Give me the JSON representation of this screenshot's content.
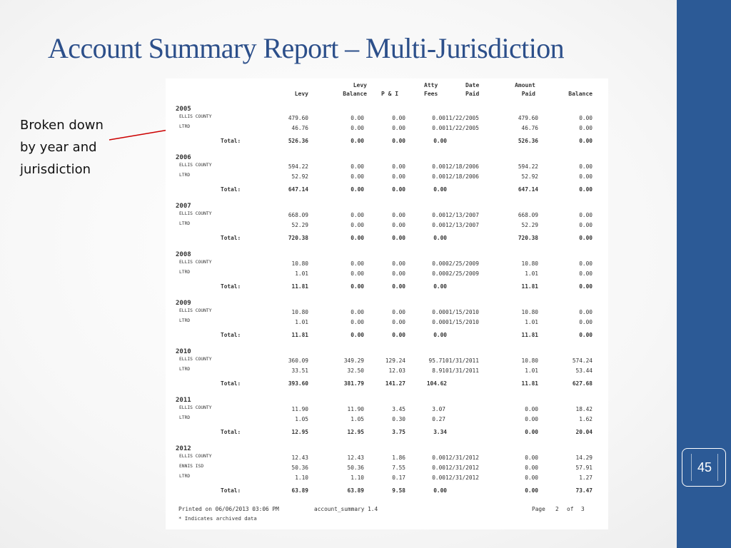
{
  "slide": {
    "title": "Account Summary Report – Multi-Jurisdiction",
    "note": "Broken down by year and jurisdiction",
    "page_number": "45"
  },
  "colors": {
    "title": "#2c4f8a",
    "side_bar": "#2c5a96",
    "arrow": "#cc0000"
  },
  "report": {
    "headers": [
      {
        "key": "levy",
        "lines": [
          "",
          "Levy"
        ]
      },
      {
        "key": "levy_balance",
        "lines": [
          "Levy",
          "Balance"
        ]
      },
      {
        "key": "pi",
        "lines": [
          "",
          "P & I"
        ]
      },
      {
        "key": "atty_fees",
        "lines": [
          "Atty",
          "Fees"
        ]
      },
      {
        "key": "date_paid",
        "lines": [
          "Date",
          "Paid"
        ]
      },
      {
        "key": "amount_paid",
        "lines": [
          "Amount",
          "Paid"
        ]
      },
      {
        "key": "balance",
        "lines": [
          "",
          "Balance"
        ]
      }
    ],
    "total_label": "Total:",
    "years": [
      {
        "year": "2005",
        "rows": [
          {
            "jur": "ELLIS COUNTY",
            "levy": "479.60",
            "levy_balance": "0.00",
            "pi": "0.00",
            "atty": "0.00",
            "date": "11/22/2005",
            "amount": "479.60",
            "balance": "0.00"
          },
          {
            "jur": "LTRD",
            "levy": "46.76",
            "levy_balance": "0.00",
            "pi": "0.00",
            "atty": "0.00",
            "date": "11/22/2005",
            "amount": "46.76",
            "balance": "0.00"
          }
        ],
        "total": {
          "levy": "526.36",
          "levy_balance": "0.00",
          "pi": "0.00",
          "atty": "0.00",
          "amount": "526.36",
          "balance": "0.00"
        }
      },
      {
        "year": "2006",
        "rows": [
          {
            "jur": "ELLIS COUNTY",
            "levy": "594.22",
            "levy_balance": "0.00",
            "pi": "0.00",
            "atty": "0.00",
            "date": "12/18/2006",
            "amount": "594.22",
            "balance": "0.00"
          },
          {
            "jur": "LTRD",
            "levy": "52.92",
            "levy_balance": "0.00",
            "pi": "0.00",
            "atty": "0.00",
            "date": "12/18/2006",
            "amount": "52.92",
            "balance": "0.00"
          }
        ],
        "total": {
          "levy": "647.14",
          "levy_balance": "0.00",
          "pi": "0.00",
          "atty": "0.00",
          "amount": "647.14",
          "balance": "0.00"
        }
      },
      {
        "year": "2007",
        "rows": [
          {
            "jur": "ELLIS COUNTY",
            "levy": "668.09",
            "levy_balance": "0.00",
            "pi": "0.00",
            "atty": "0.00",
            "date": "12/13/2007",
            "amount": "668.09",
            "balance": "0.00"
          },
          {
            "jur": "LTRD",
            "levy": "52.29",
            "levy_balance": "0.00",
            "pi": "0.00",
            "atty": "0.00",
            "date": "12/13/2007",
            "amount": "52.29",
            "balance": "0.00"
          }
        ],
        "total": {
          "levy": "720.38",
          "levy_balance": "0.00",
          "pi": "0.00",
          "atty": "0.00",
          "amount": "720.38",
          "balance": "0.00"
        }
      },
      {
        "year": "2008",
        "rows": [
          {
            "jur": "ELLIS COUNTY",
            "levy": "10.80",
            "levy_balance": "0.00",
            "pi": "0.00",
            "atty": "0.00",
            "date": "02/25/2009",
            "amount": "10.80",
            "balance": "0.00"
          },
          {
            "jur": "LTRD",
            "levy": "1.01",
            "levy_balance": "0.00",
            "pi": "0.00",
            "atty": "0.00",
            "date": "02/25/2009",
            "amount": "1.01",
            "balance": "0.00"
          }
        ],
        "total": {
          "levy": "11.81",
          "levy_balance": "0.00",
          "pi": "0.00",
          "atty": "0.00",
          "amount": "11.81",
          "balance": "0.00"
        }
      },
      {
        "year": "2009",
        "rows": [
          {
            "jur": "ELLIS COUNTY",
            "levy": "10.80",
            "levy_balance": "0.00",
            "pi": "0.00",
            "atty": "0.00",
            "date": "01/15/2010",
            "amount": "10.80",
            "balance": "0.00"
          },
          {
            "jur": "LTRD",
            "levy": "1.01",
            "levy_balance": "0.00",
            "pi": "0.00",
            "atty": "0.00",
            "date": "01/15/2010",
            "amount": "1.01",
            "balance": "0.00"
          }
        ],
        "total": {
          "levy": "11.81",
          "levy_balance": "0.00",
          "pi": "0.00",
          "atty": "0.00",
          "amount": "11.81",
          "balance": "0.00"
        }
      },
      {
        "year": "2010",
        "rows": [
          {
            "jur": "ELLIS COUNTY",
            "levy": "360.09",
            "levy_balance": "349.29",
            "pi": "129.24",
            "atty": "95.71",
            "date": "01/31/2011",
            "amount": "10.80",
            "balance": "574.24"
          },
          {
            "jur": "LTRD",
            "levy": "33.51",
            "levy_balance": "32.50",
            "pi": "12.03",
            "atty": "8.91",
            "date": "01/31/2011",
            "amount": "1.01",
            "balance": "53.44"
          }
        ],
        "total": {
          "levy": "393.60",
          "levy_balance": "381.79",
          "pi": "141.27",
          "atty": "104.62",
          "amount": "11.81",
          "balance": "627.68"
        }
      },
      {
        "year": "2011",
        "rows": [
          {
            "jur": "ELLIS COUNTY",
            "levy": "11.90",
            "levy_balance": "11.90",
            "pi": "3.45",
            "atty": "3.07",
            "date": "",
            "amount": "0.00",
            "balance": "18.42"
          },
          {
            "jur": "LTRD",
            "levy": "1.05",
            "levy_balance": "1.05",
            "pi": "0.30",
            "atty": "0.27",
            "date": "",
            "amount": "0.00",
            "balance": "1.62"
          }
        ],
        "total": {
          "levy": "12.95",
          "levy_balance": "12.95",
          "pi": "3.75",
          "atty": "3.34",
          "amount": "0.00",
          "balance": "20.04"
        }
      },
      {
        "year": "2012",
        "rows": [
          {
            "jur": "ELLIS COUNTY",
            "levy": "12.43",
            "levy_balance": "12.43",
            "pi": "1.86",
            "atty": "0.00",
            "date": "12/31/2012",
            "amount": "0.00",
            "balance": "14.29"
          },
          {
            "jur": "ENNIS ISD",
            "levy": "50.36",
            "levy_balance": "50.36",
            "pi": "7.55",
            "atty": "0.00",
            "date": "12/31/2012",
            "amount": "0.00",
            "balance": "57.91"
          },
          {
            "jur": "LTRD",
            "levy": "1.10",
            "levy_balance": "1.10",
            "pi": "0.17",
            "atty": "0.00",
            "date": "12/31/2012",
            "amount": "0.00",
            "balance": "1.27"
          }
        ],
        "total": {
          "levy": "63.89",
          "levy_balance": "63.89",
          "pi": "9.58",
          "atty": "0.00",
          "amount": "0.00",
          "balance": "73.47"
        }
      }
    ],
    "footer": {
      "printed": "Printed on 06/06/2013 03:06 PM",
      "program": "account_summary 1.4",
      "page_label": "Page",
      "page": "2",
      "of_label": "of",
      "pages": "3",
      "note": "* Indicates archived data"
    }
  }
}
